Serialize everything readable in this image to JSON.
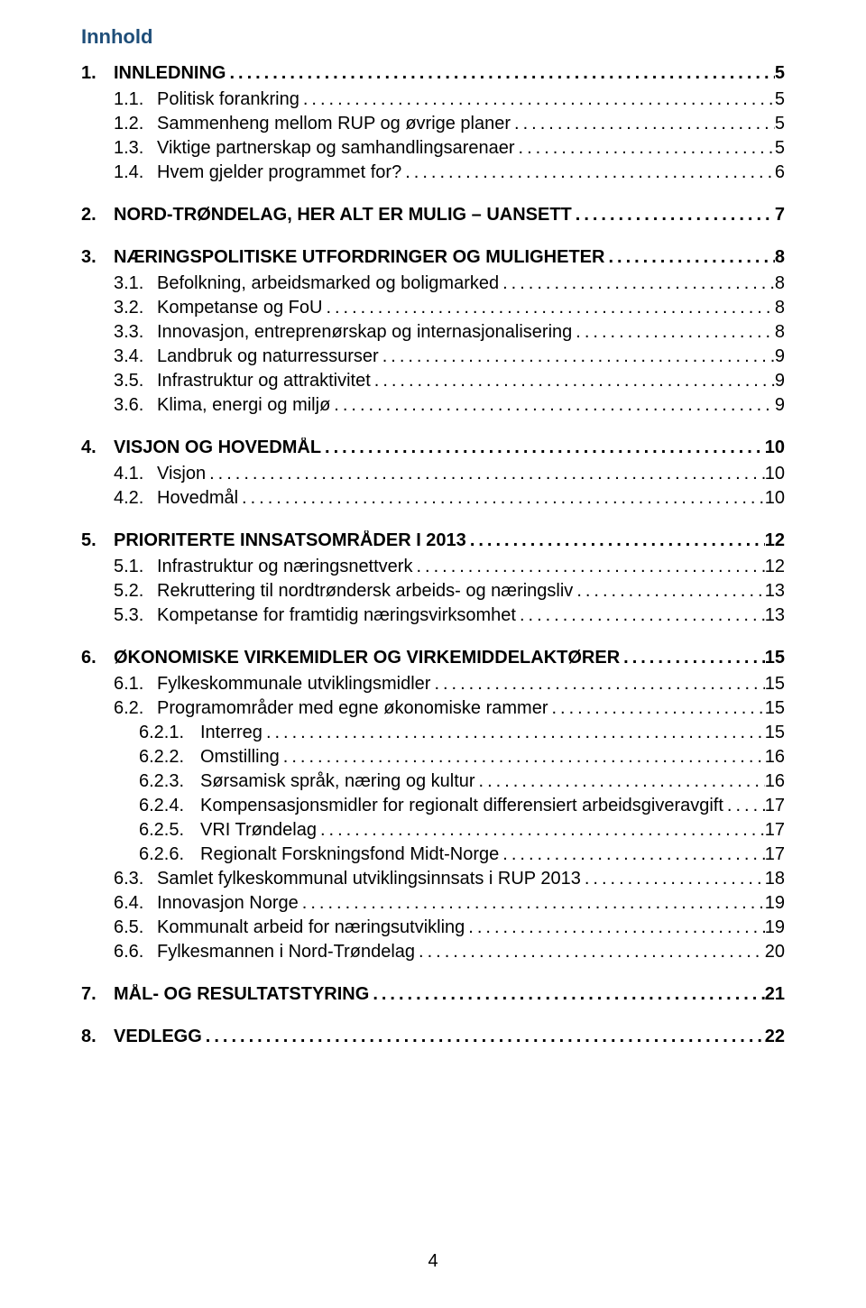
{
  "colors": {
    "title_color": "#1f4e79",
    "text_color": "#000000",
    "background": "#ffffff"
  },
  "typography": {
    "font_family": "Arial",
    "level1_fontsize": 20,
    "level1_weight": "bold",
    "level2_fontsize": 20,
    "level2_weight": "normal",
    "level3_fontsize": 20,
    "level3_weight": "normal",
    "title_fontsize": 22,
    "title_weight": "bold"
  },
  "title": "Innhold",
  "page_number": "4",
  "toc": [
    {
      "level": 1,
      "num": "1.",
      "label": "INNLEDNING",
      "page": "5"
    },
    {
      "level": 2,
      "num": "1.1.",
      "label": "Politisk forankring",
      "page": "5"
    },
    {
      "level": 2,
      "num": "1.2.",
      "label": "Sammenheng mellom RUP og øvrige planer",
      "page": "5"
    },
    {
      "level": 2,
      "num": "1.3.",
      "label": "Viktige partnerskap og samhandlingsarenaer",
      "page": "5"
    },
    {
      "level": 2,
      "num": "1.4.",
      "label": "Hvem gjelder programmet for?",
      "page": "6",
      "gap_after": true
    },
    {
      "level": 1,
      "num": "2.",
      "label": "NORD-TRØNDELAG, HER ALT ER MULIG – UANSETT",
      "page": "7",
      "gap_after": true
    },
    {
      "level": 1,
      "num": "3.",
      "label": "NÆRINGSPOLITISKE UTFORDRINGER OG MULIGHETER",
      "page": "8"
    },
    {
      "level": 2,
      "num": "3.1.",
      "label": "Befolkning, arbeidsmarked og boligmarked",
      "page": "8"
    },
    {
      "level": 2,
      "num": "3.2.",
      "label": "Kompetanse og FoU",
      "page": "8"
    },
    {
      "level": 2,
      "num": "3.3.",
      "label": "Innovasjon, entreprenørskap og internasjonalisering",
      "page": "8"
    },
    {
      "level": 2,
      "num": "3.4.",
      "label": "Landbruk og naturressurser",
      "page": "9"
    },
    {
      "level": 2,
      "num": "3.5.",
      "label": "Infrastruktur og attraktivitet",
      "page": "9"
    },
    {
      "level": 2,
      "num": "3.6.",
      "label": "Klima, energi og miljø",
      "page": "9",
      "gap_after": true
    },
    {
      "level": 1,
      "num": "4.",
      "label": "VISJON OG HOVEDMÅL",
      "page": "10"
    },
    {
      "level": 2,
      "num": "4.1.",
      "label": "Visjon",
      "page": "10"
    },
    {
      "level": 2,
      "num": "4.2.",
      "label": "Hovedmål",
      "page": "10",
      "gap_after": true
    },
    {
      "level": 1,
      "num": "5.",
      "label": "PRIORITERTE INNSATSOMRÅDER I 2013",
      "page": "12"
    },
    {
      "level": 2,
      "num": "5.1.",
      "label": "Infrastruktur og næringsnettverk",
      "page": "12"
    },
    {
      "level": 2,
      "num": "5.2.",
      "label": "Rekruttering til nordtrøndersk arbeids- og næringsliv",
      "page": "13"
    },
    {
      "level": 2,
      "num": "5.3.",
      "label": "Kompetanse for framtidig næringsvirksomhet",
      "page": "13",
      "gap_after": true
    },
    {
      "level": 1,
      "num": "6.",
      "label": "ØKONOMISKE VIRKEMIDLER OG VIRKEMIDDELAKTØRER",
      "page": "15"
    },
    {
      "level": 2,
      "num": "6.1.",
      "label": "Fylkeskommunale utviklingsmidler",
      "page": "15"
    },
    {
      "level": 2,
      "num": "6.2.",
      "label": "Programområder med egne økonomiske rammer",
      "page": "15"
    },
    {
      "level": 3,
      "num": "6.2.1.",
      "label": "Interreg",
      "page": "15"
    },
    {
      "level": 3,
      "num": "6.2.2.",
      "label": "Omstilling",
      "page": "16"
    },
    {
      "level": 3,
      "num": "6.2.3.",
      "label": "Sørsamisk språk, næring og kultur",
      "page": "16"
    },
    {
      "level": 3,
      "num": "6.2.4.",
      "label": "Kompensasjonsmidler for regionalt differensiert arbeidsgiveravgift",
      "page": "17"
    },
    {
      "level": 3,
      "num": "6.2.5.",
      "label": "VRI Trøndelag",
      "page": "17"
    },
    {
      "level": 3,
      "num": "6.2.6.",
      "label": "Regionalt Forskningsfond Midt-Norge",
      "page": "17"
    },
    {
      "level": 2,
      "num": "6.3.",
      "label": "Samlet fylkeskommunal utviklingsinnsats i RUP 2013",
      "page": "18"
    },
    {
      "level": 2,
      "num": "6.4.",
      "label": "Innovasjon Norge",
      "page": "19"
    },
    {
      "level": 2,
      "num": "6.5.",
      "label": "Kommunalt arbeid for næringsutvikling",
      "page": "19"
    },
    {
      "level": 2,
      "num": "6.6.",
      "label": "Fylkesmannen i Nord-Trøndelag",
      "page": "20",
      "gap_after": true
    },
    {
      "level": 1,
      "num": "7.",
      "label": "MÅL- OG RESULTATSTYRING",
      "page": "21",
      "gap_after": true
    },
    {
      "level": 1,
      "num": "8.",
      "label": "VEDLEGG",
      "page": "22"
    }
  ]
}
